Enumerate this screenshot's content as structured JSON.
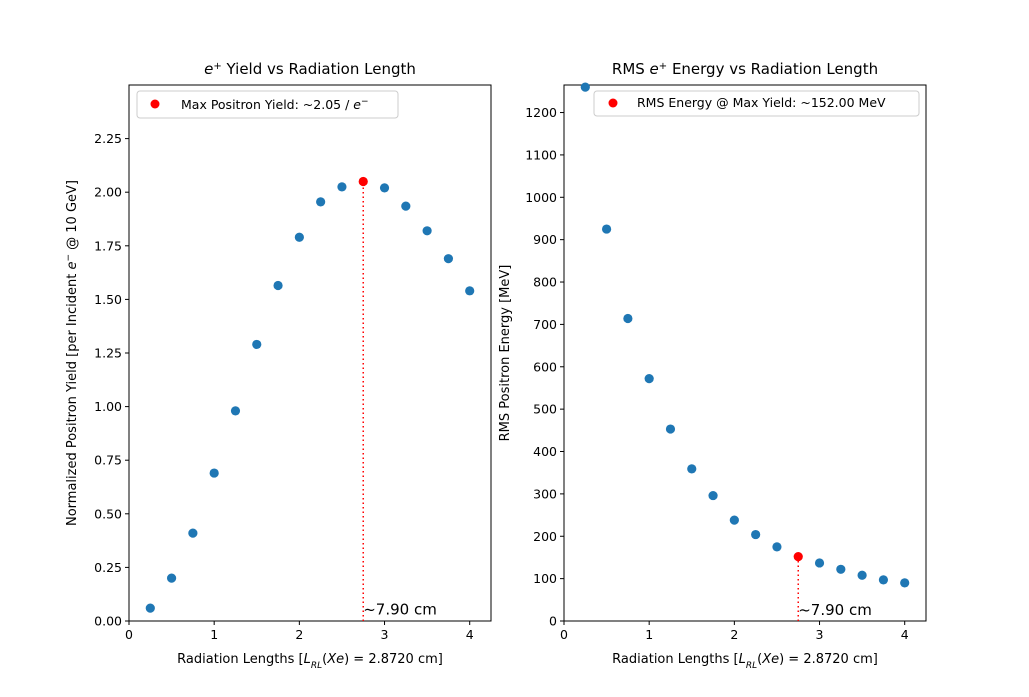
{
  "chart_data": [
    {
      "type": "scatter",
      "title": "e⁺ Yield vs Radiation Length",
      "xlabel": "Radiation Lengths [L_RL(Xe) = 2.8720 cm]",
      "ylabel": "Normalized Positron Yield [per Incident e⁻ @ 10 GeV]",
      "xlim": [
        0,
        4.25
      ],
      "ylim": [
        0,
        2.5
      ],
      "xticks": [
        0,
        1,
        2,
        3,
        4
      ],
      "xtick_labels": [
        "0",
        "1",
        "2",
        "3",
        "4"
      ],
      "yticks": [
        0,
        0.25,
        0.5,
        0.75,
        1.0,
        1.25,
        1.5,
        1.75,
        2.0,
        2.25
      ],
      "ytick_labels": [
        "0.00",
        "0.25",
        "0.50",
        "0.75",
        "1.00",
        "1.25",
        "1.50",
        "1.75",
        "2.00",
        "2.25"
      ],
      "grid": false,
      "legend_placement": "upper-left",
      "series": [
        {
          "color": "#1f77b4",
          "x": [
            0.25,
            0.5,
            0.75,
            1.0,
            1.25,
            1.5,
            1.75,
            2.0,
            2.25,
            2.5,
            3.0,
            3.25,
            3.5,
            3.75,
            4.0
          ],
          "y": [
            0.06,
            0.2,
            0.41,
            0.69,
            0.98,
            1.29,
            1.565,
            1.79,
            1.955,
            2.025,
            2.02,
            1.935,
            1.82,
            1.69,
            1.54
          ]
        },
        {
          "name": "Max Positron Yield: ~2.05 / e⁻",
          "color": "#ff0000",
          "x": [
            2.75
          ],
          "y": [
            2.05
          ]
        }
      ],
      "marker_line": {
        "x": 2.75,
        "from": 0,
        "to": 2.05,
        "color": "#ff0000",
        "style": "dotted"
      },
      "annotation": {
        "text": "~7.90 cm",
        "x": 2.75,
        "y": 0.02
      }
    },
    {
      "type": "scatter",
      "title": "RMS e⁺ Energy vs Radiation Length",
      "xlabel": "Radiation Lengths [L_RL(Xe) = 2.8720 cm]",
      "ylabel": "RMS Positron Energy [MeV]",
      "xlim": [
        0,
        4.25
      ],
      "ylim": [
        0,
        1265
      ],
      "xticks": [
        0,
        1,
        2,
        3,
        4
      ],
      "xtick_labels": [
        "0",
        "1",
        "2",
        "3",
        "4"
      ],
      "yticks": [
        0,
        100,
        200,
        300,
        400,
        500,
        600,
        700,
        800,
        900,
        1000,
        1100,
        1200
      ],
      "ytick_labels": [
        "0",
        "100",
        "200",
        "300",
        "400",
        "500",
        "600",
        "700",
        "800",
        "900",
        "1000",
        "1100",
        "1200"
      ],
      "grid": false,
      "legend_placement": "upper-right",
      "series": [
        {
          "color": "#1f77b4",
          "x": [
            0.25,
            0.5,
            0.75,
            1.0,
            1.25,
            1.5,
            1.75,
            2.0,
            2.25,
            2.5,
            3.0,
            3.25,
            3.5,
            3.75,
            4.0
          ],
          "y": [
            1260,
            925,
            714,
            572,
            453,
            359,
            296,
            238,
            204,
            175,
            137,
            122,
            108,
            97,
            90
          ]
        },
        {
          "name": "RMS Energy @ Max Yield: ~152.00 MeV",
          "color": "#ff0000",
          "x": [
            2.75
          ],
          "y": [
            152
          ]
        }
      ],
      "marker_line": {
        "x": 2.75,
        "from": 0,
        "to": 152,
        "color": "#ff0000",
        "style": "dotted"
      },
      "annotation": {
        "text": "~7.90 cm",
        "x": 2.75,
        "y": 10
      }
    }
  ]
}
